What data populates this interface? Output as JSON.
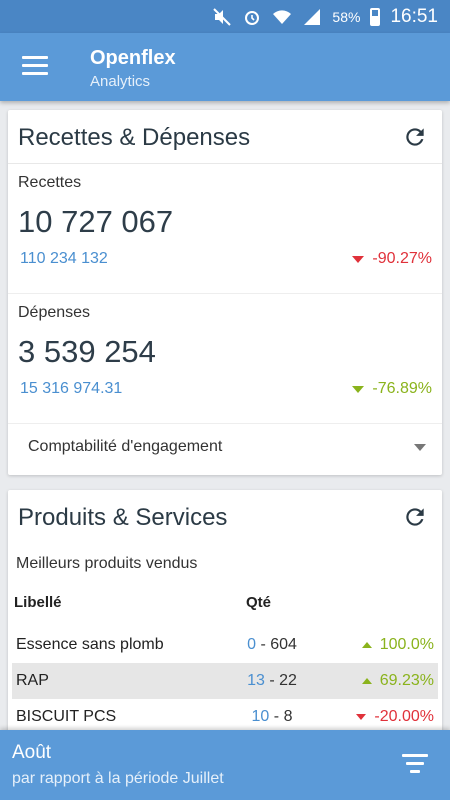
{
  "status_bar": {
    "battery": "58%",
    "time": "16:51",
    "icons": [
      "mute-icon",
      "alarm-icon",
      "wifi-icon",
      "signal-icon",
      "battery-icon"
    ]
  },
  "app_bar": {
    "title": "Openflex",
    "subtitle": "Analytics"
  },
  "card_finance": {
    "title": "Recettes & Dépenses",
    "recettes": {
      "label": "Recettes",
      "value": "10 727 067",
      "previous": "110 234 132",
      "change": "-90.27%"
    },
    "depenses": {
      "label": "Dépenses",
      "value": "3 539 254",
      "previous": "15 316 974.31",
      "change": "-76.89%"
    },
    "dropdown_value": "Comptabilité d'engagement"
  },
  "card_products": {
    "title": "Produits & Services",
    "subtitle": "Meilleurs produits vendus",
    "columns": {
      "libelle": "Libellé",
      "qte": "Qté"
    },
    "rows": [
      {
        "name": "Essence sans plomb",
        "q_prev": "0",
        "q_curr": "604",
        "change": "100.0%"
      },
      {
        "name": "RAP",
        "q_prev": "13",
        "q_curr": "22",
        "change": "69.23%"
      },
      {
        "name": "BISCUIT PCS",
        "q_prev": "10",
        "q_curr": "8",
        "change": "-20.00%"
      }
    ],
    "separator": "-"
  },
  "bottom_bar": {
    "title": "Août",
    "subtitle": "par rapport à la période Juillet"
  },
  "colors": {
    "primary": "#5b9ad8",
    "status_bar": "#4a86c5",
    "negative": "#e0313a",
    "positive": "#8ab31c",
    "link_blue": "#4a8fd0"
  }
}
